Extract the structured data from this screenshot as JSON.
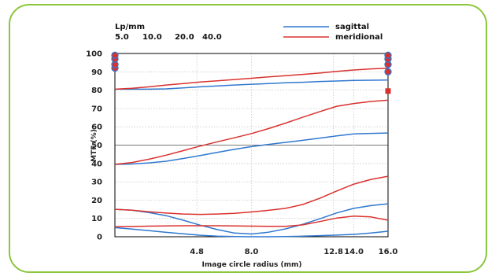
{
  "chart_data": {
    "type": "line",
    "title": "",
    "header": {
      "label": "Lp/mm",
      "values": [
        "5.0",
        "10.0",
        "20.0",
        "40.0"
      ]
    },
    "xlabel": "Image circle radius (mm)",
    "ylabel": "MTF (%)",
    "xlim": [
      0,
      16
    ],
    "ylim": [
      0,
      100
    ],
    "xticks": [
      "4.8",
      "8.0",
      "12.8",
      "14.0",
      "16.0"
    ],
    "yticks": [
      "0",
      "10",
      "20",
      "30",
      "40",
      "50",
      "60",
      "70",
      "80",
      "90",
      "100"
    ],
    "legend": {
      "placement": "top-right"
    },
    "colors": {
      "sagittal": "#2f78cf",
      "meridional": "#d9322e",
      "frame": "#8cc63f"
    },
    "series": [
      {
        "name": "sagittal",
        "x": [
          0,
          1,
          2,
          3,
          4,
          5,
          6,
          7,
          8,
          9,
          10,
          11,
          12,
          13,
          14,
          15,
          16
        ],
        "values": [
          80.5,
          80.5,
          80.5,
          80.7,
          81.2,
          81.8,
          82.3,
          82.8,
          83.2,
          83.6,
          84.0,
          84.3,
          84.7,
          85.0,
          85.3,
          85.4,
          85.5
        ]
      },
      {
        "name": "meridional",
        "x": [
          0,
          1,
          2,
          3,
          4,
          5,
          6,
          7,
          8,
          9,
          10,
          11,
          12,
          13,
          14,
          15,
          16
        ],
        "values": [
          80.5,
          81.0,
          81.8,
          82.8,
          83.6,
          84.4,
          85.1,
          85.8,
          86.5,
          87.2,
          87.9,
          88.6,
          89.3,
          90.2,
          91.0,
          91.6,
          92.0
        ]
      },
      {
        "name": "sagittal",
        "x": [
          0,
          1,
          2,
          3,
          4,
          5,
          6,
          7,
          8,
          9,
          10,
          11,
          12,
          13,
          14,
          15,
          16
        ],
        "values": [
          39.5,
          39.7,
          40.3,
          41.2,
          42.7,
          44.3,
          46.0,
          47.7,
          49.2,
          50.4,
          51.5,
          52.6,
          53.8,
          55.0,
          56.1,
          56.4,
          56.6
        ]
      },
      {
        "name": "meridional",
        "x": [
          0,
          1,
          2,
          3,
          4,
          5,
          6,
          7,
          8,
          9,
          10,
          11,
          12,
          13,
          14,
          15,
          16
        ],
        "values": [
          39.5,
          40.5,
          42.3,
          44.5,
          47.0,
          49.5,
          51.8,
          54.0,
          56.3,
          59.0,
          62.0,
          65.2,
          68.3,
          71.2,
          72.7,
          73.8,
          74.5
        ]
      },
      {
        "name": "sagittal",
        "x": [
          0,
          1,
          2,
          3,
          4,
          5,
          6,
          7,
          8,
          9,
          10,
          11,
          12,
          13,
          14,
          15,
          16
        ],
        "values": [
          15.0,
          14.5,
          13.2,
          11.5,
          9.0,
          6.3,
          3.9,
          2.0,
          1.5,
          2.5,
          4.3,
          6.8,
          9.8,
          13.0,
          15.5,
          17.0,
          18.0
        ]
      },
      {
        "name": "meridional",
        "x": [
          0,
          1,
          2,
          3,
          4,
          5,
          6,
          7,
          8,
          9,
          10,
          11,
          12,
          13,
          14,
          15,
          16
        ],
        "values": [
          15.0,
          14.5,
          13.6,
          12.9,
          12.4,
          12.2,
          12.4,
          12.8,
          13.5,
          14.4,
          15.5,
          17.6,
          21.0,
          25.0,
          28.7,
          31.3,
          33.0
        ]
      },
      {
        "name": "sagittal",
        "x": [
          0,
          1,
          2,
          3,
          4,
          5,
          6,
          7,
          8,
          9,
          10,
          11,
          12,
          13,
          14,
          15,
          16
        ],
        "values": [
          5.0,
          4.2,
          3.3,
          2.4,
          1.6,
          0.8,
          0.3,
          0.1,
          0.0,
          0.0,
          0.1,
          0.3,
          0.6,
          0.9,
          1.3,
          2.0,
          3.0
        ]
      },
      {
        "name": "meridional",
        "x": [
          0,
          1,
          2,
          3,
          4,
          5,
          6,
          7,
          8,
          9,
          10,
          11,
          12,
          13,
          14,
          15,
          16
        ],
        "values": [
          5.5,
          5.6,
          5.8,
          5.9,
          6.0,
          6.0,
          6.0,
          5.9,
          5.8,
          5.7,
          5.7,
          6.5,
          8.3,
          10.2,
          11.3,
          10.8,
          9.0
        ]
      }
    ]
  }
}
